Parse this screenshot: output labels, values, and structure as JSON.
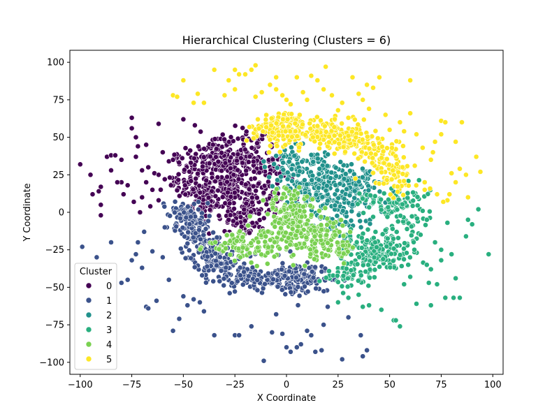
{
  "chart_data": {
    "type": "scatter",
    "title": "Hierarchical Clustering (Clusters = 6)",
    "xlabel": "X Coordinate",
    "ylabel": "Y Coordinate",
    "xlim": [
      -105,
      105
    ],
    "ylim": [
      -108,
      108
    ],
    "xticks": [
      -100,
      -75,
      -50,
      -25,
      0,
      25,
      50,
      75,
      100
    ],
    "yticks": [
      -100,
      -75,
      -50,
      -25,
      0,
      25,
      50,
      75,
      100
    ],
    "grid": false,
    "legend": {
      "title": "Cluster",
      "placement": "lower-left"
    },
    "series": [
      {
        "name": "0",
        "color": "#440154",
        "count": 620,
        "core": [
          [
            -44,
            25
          ],
          [
            -34,
            38
          ],
          [
            -22,
            42
          ],
          [
            -28,
            20
          ],
          [
            -17,
            8
          ],
          [
            -12,
            28
          ],
          [
            -40,
            8
          ],
          [
            -20,
            -5
          ]
        ],
        "spread": 7,
        "outliers": [
          [
            -100,
            32
          ],
          [
            -95,
            25
          ],
          [
            -94,
            12
          ],
          [
            -91,
            14
          ],
          [
            -90,
            17
          ],
          [
            -90,
            5
          ],
          [
            -90,
            -2
          ],
          [
            -87,
            37
          ],
          [
            -85,
            38
          ],
          [
            -85,
            28
          ],
          [
            -83,
            38
          ],
          [
            -80,
            35
          ],
          [
            -80,
            20
          ],
          [
            -77,
            18
          ],
          [
            -75,
            63
          ],
          [
            -75,
            56
          ],
          [
            -73,
            50
          ],
          [
            -73,
            37
          ],
          [
            -72,
            44
          ],
          [
            -70,
            28
          ],
          [
            -70,
            10
          ],
          [
            -68,
            45
          ],
          [
            -68,
            20
          ],
          [
            -67,
            30
          ],
          [
            -65,
            15
          ],
          [
            -64,
            26
          ],
          [
            -62,
            59
          ],
          [
            -62,
            25
          ],
          [
            -62,
            8
          ],
          [
            -60,
            40
          ],
          [
            -59,
            22
          ],
          [
            -57,
            34
          ],
          [
            -56,
            18
          ],
          [
            -55,
            35
          ],
          [
            -50,
            62
          ],
          [
            -82,
            20
          ],
          [
            -79,
            12
          ],
          [
            -74,
            7
          ],
          [
            -66,
            4
          ],
          [
            -71,
            0
          ]
        ]
      },
      {
        "name": "1",
        "color": "#3b528b",
        "count": 520,
        "core": [
          [
            -50,
            0
          ],
          [
            -45,
            -12
          ],
          [
            -40,
            -22
          ],
          [
            -35,
            -30
          ],
          [
            -30,
            -38
          ],
          [
            -20,
            -42
          ],
          [
            -10,
            -45
          ],
          [
            0,
            -44
          ],
          [
            10,
            -45
          ],
          [
            -46,
            -6
          ],
          [
            -38,
            -32
          ],
          [
            5,
            -48
          ],
          [
            15,
            -42
          ]
        ],
        "spread": 5,
        "outliers": [
          [
            -99,
            -23
          ],
          [
            -92,
            -30
          ],
          [
            -85,
            -20
          ],
          [
            -80,
            -47
          ],
          [
            -77,
            -45
          ],
          [
            -75,
            -32
          ],
          [
            -73,
            -28
          ],
          [
            -72,
            -20
          ],
          [
            -70,
            -37
          ],
          [
            -69,
            -13
          ],
          [
            -68,
            -63
          ],
          [
            -67,
            -64
          ],
          [
            -65,
            -26
          ],
          [
            -63,
            -59
          ],
          [
            -60,
            -30
          ],
          [
            -59,
            -10
          ],
          [
            -57,
            -45
          ],
          [
            -55,
            -79
          ],
          [
            -52,
            -71
          ],
          [
            -50,
            -56
          ],
          [
            -48,
            -62
          ],
          [
            -45,
            -58
          ],
          [
            -42,
            -60
          ],
          [
            -40,
            -66
          ],
          [
            -35,
            -82
          ],
          [
            -25,
            -82
          ],
          [
            -23,
            -82
          ],
          [
            -17,
            -76
          ],
          [
            -11,
            -99
          ],
          [
            -7,
            -80
          ],
          [
            -5,
            -68
          ],
          [
            -2,
            -81
          ],
          [
            0,
            -90
          ],
          [
            2,
            -93
          ],
          [
            5,
            -90
          ],
          [
            7,
            -88
          ],
          [
            10,
            -79
          ],
          [
            12,
            -82
          ],
          [
            14,
            -93
          ],
          [
            17,
            -92
          ],
          [
            18,
            -75
          ],
          [
            20,
            -63
          ],
          [
            27,
            -98
          ],
          [
            30,
            -70
          ],
          [
            36,
            -82
          ],
          [
            37,
            -96
          ],
          [
            39,
            -92
          ]
        ]
      },
      {
        "name": "2",
        "color": "#21918c",
        "count": 420,
        "core": [
          [
            2,
            35
          ],
          [
            10,
            30
          ],
          [
            18,
            28
          ],
          [
            25,
            22
          ],
          [
            30,
            18
          ],
          [
            35,
            10
          ],
          [
            8,
            15
          ],
          [
            15,
            12
          ],
          [
            22,
            2
          ],
          [
            28,
            -6
          ],
          [
            4,
            24
          ],
          [
            38,
            22
          ]
        ],
        "spread": 6,
        "outliers": []
      },
      {
        "name": "3",
        "color": "#29af7f",
        "count": 330,
        "core": [
          [
            45,
            5
          ],
          [
            55,
            5
          ],
          [
            60,
            -5
          ],
          [
            50,
            -15
          ],
          [
            45,
            -25
          ],
          [
            38,
            -30
          ],
          [
            30,
            -40
          ],
          [
            45,
            -35
          ],
          [
            55,
            -25
          ],
          [
            58,
            8
          ],
          [
            35,
            -20
          ],
          [
            25,
            -42
          ]
        ],
        "spread": 5,
        "outliers": [
          [
            25,
            -60
          ],
          [
            30,
            -57
          ],
          [
            35,
            -55
          ],
          [
            37,
            -63
          ],
          [
            40,
            -62
          ],
          [
            46,
            -65
          ],
          [
            52,
            -72
          ],
          [
            53,
            -72
          ],
          [
            55,
            -76
          ],
          [
            57,
            -48
          ],
          [
            60,
            -43
          ],
          [
            63,
            -61
          ],
          [
            65,
            -15
          ],
          [
            66,
            1
          ],
          [
            68,
            -5
          ],
          [
            69,
            -47
          ],
          [
            70,
            -62
          ],
          [
            72,
            -20
          ],
          [
            73,
            -48
          ],
          [
            75,
            -25
          ],
          [
            75,
            -32
          ],
          [
            77,
            -57
          ],
          [
            78,
            -7
          ],
          [
            80,
            -28
          ],
          [
            81,
            -57
          ],
          [
            82,
            -44
          ],
          [
            84,
            -57
          ],
          [
            87,
            -16
          ],
          [
            88,
            -5
          ],
          [
            90,
            -8
          ],
          [
            93,
            2
          ],
          [
            98,
            -28
          ],
          [
            59,
            -35
          ],
          [
            62,
            -25
          ],
          [
            68,
            -35
          ],
          [
            70,
            -38
          ]
        ]
      },
      {
        "name": "4",
        "color": "#7ad151",
        "count": 420,
        "core": [
          [
            0,
            0
          ],
          [
            5,
            -5
          ],
          [
            10,
            -15
          ],
          [
            0,
            -18
          ],
          [
            -10,
            -25
          ],
          [
            -20,
            -22
          ],
          [
            -28,
            -20
          ],
          [
            15,
            -25
          ],
          [
            25,
            -22
          ],
          [
            2,
            8
          ],
          [
            -5,
            -10
          ],
          [
            20,
            -10
          ]
        ],
        "spread": 5,
        "outliers": []
      },
      {
        "name": "5",
        "color": "#fde725",
        "count": 440,
        "core": [
          [
            -10,
            55
          ],
          [
            0,
            58
          ],
          [
            8,
            56
          ],
          [
            18,
            52
          ],
          [
            28,
            48
          ],
          [
            38,
            45
          ],
          [
            45,
            40
          ],
          [
            50,
            30
          ],
          [
            55,
            20
          ],
          [
            -5,
            50
          ],
          [
            25,
            55
          ]
        ],
        "spread": 5,
        "outliers": [
          [
            -55,
            78
          ],
          [
            -53,
            77
          ],
          [
            -50,
            88
          ],
          [
            -45,
            73
          ],
          [
            -43,
            79
          ],
          [
            -40,
            73
          ],
          [
            -35,
            95
          ],
          [
            -30,
            78
          ],
          [
            -28,
            88
          ],
          [
            -25,
            82
          ],
          [
            -25,
            95
          ],
          [
            -23,
            92
          ],
          [
            -20,
            92
          ],
          [
            -17,
            95
          ],
          [
            -15,
            98
          ],
          [
            -15,
            77
          ],
          [
            -12,
            80
          ],
          [
            -8,
            85
          ],
          [
            -5,
            90
          ],
          [
            -5,
            82
          ],
          [
            -2,
            78
          ],
          [
            0,
            75
          ],
          [
            2,
            72
          ],
          [
            5,
            90
          ],
          [
            8,
            80
          ],
          [
            10,
            75
          ],
          [
            12,
            91
          ],
          [
            15,
            88
          ],
          [
            18,
            82
          ],
          [
            19,
            97
          ],
          [
            22,
            78
          ],
          [
            25,
            68
          ],
          [
            27,
            73
          ],
          [
            30,
            63
          ],
          [
            32,
            90
          ],
          [
            35,
            79
          ],
          [
            37,
            75
          ],
          [
            39,
            85
          ],
          [
            40,
            69
          ],
          [
            42,
            83
          ],
          [
            45,
            90
          ],
          [
            48,
            65
          ],
          [
            50,
            55
          ],
          [
            55,
            60
          ],
          [
            57,
            54
          ],
          [
            60,
            88
          ],
          [
            60,
            66
          ],
          [
            63,
            52
          ],
          [
            66,
            43
          ],
          [
            67,
            20
          ],
          [
            70,
            35
          ],
          [
            71,
            40
          ],
          [
            72,
            47
          ],
          [
            75,
            52
          ],
          [
            75,
            61
          ],
          [
            77,
            60
          ],
          [
            78,
            8
          ],
          [
            79,
            12
          ],
          [
            80,
            26
          ],
          [
            82,
            47
          ],
          [
            84,
            29
          ],
          [
            85,
            60
          ],
          [
            87,
            25
          ],
          [
            88,
            10
          ],
          [
            92,
            37
          ],
          [
            94,
            27
          ],
          [
            67,
            15
          ],
          [
            73,
            12
          ],
          [
            76,
            7
          ],
          [
            82,
            20
          ]
        ]
      }
    ]
  }
}
